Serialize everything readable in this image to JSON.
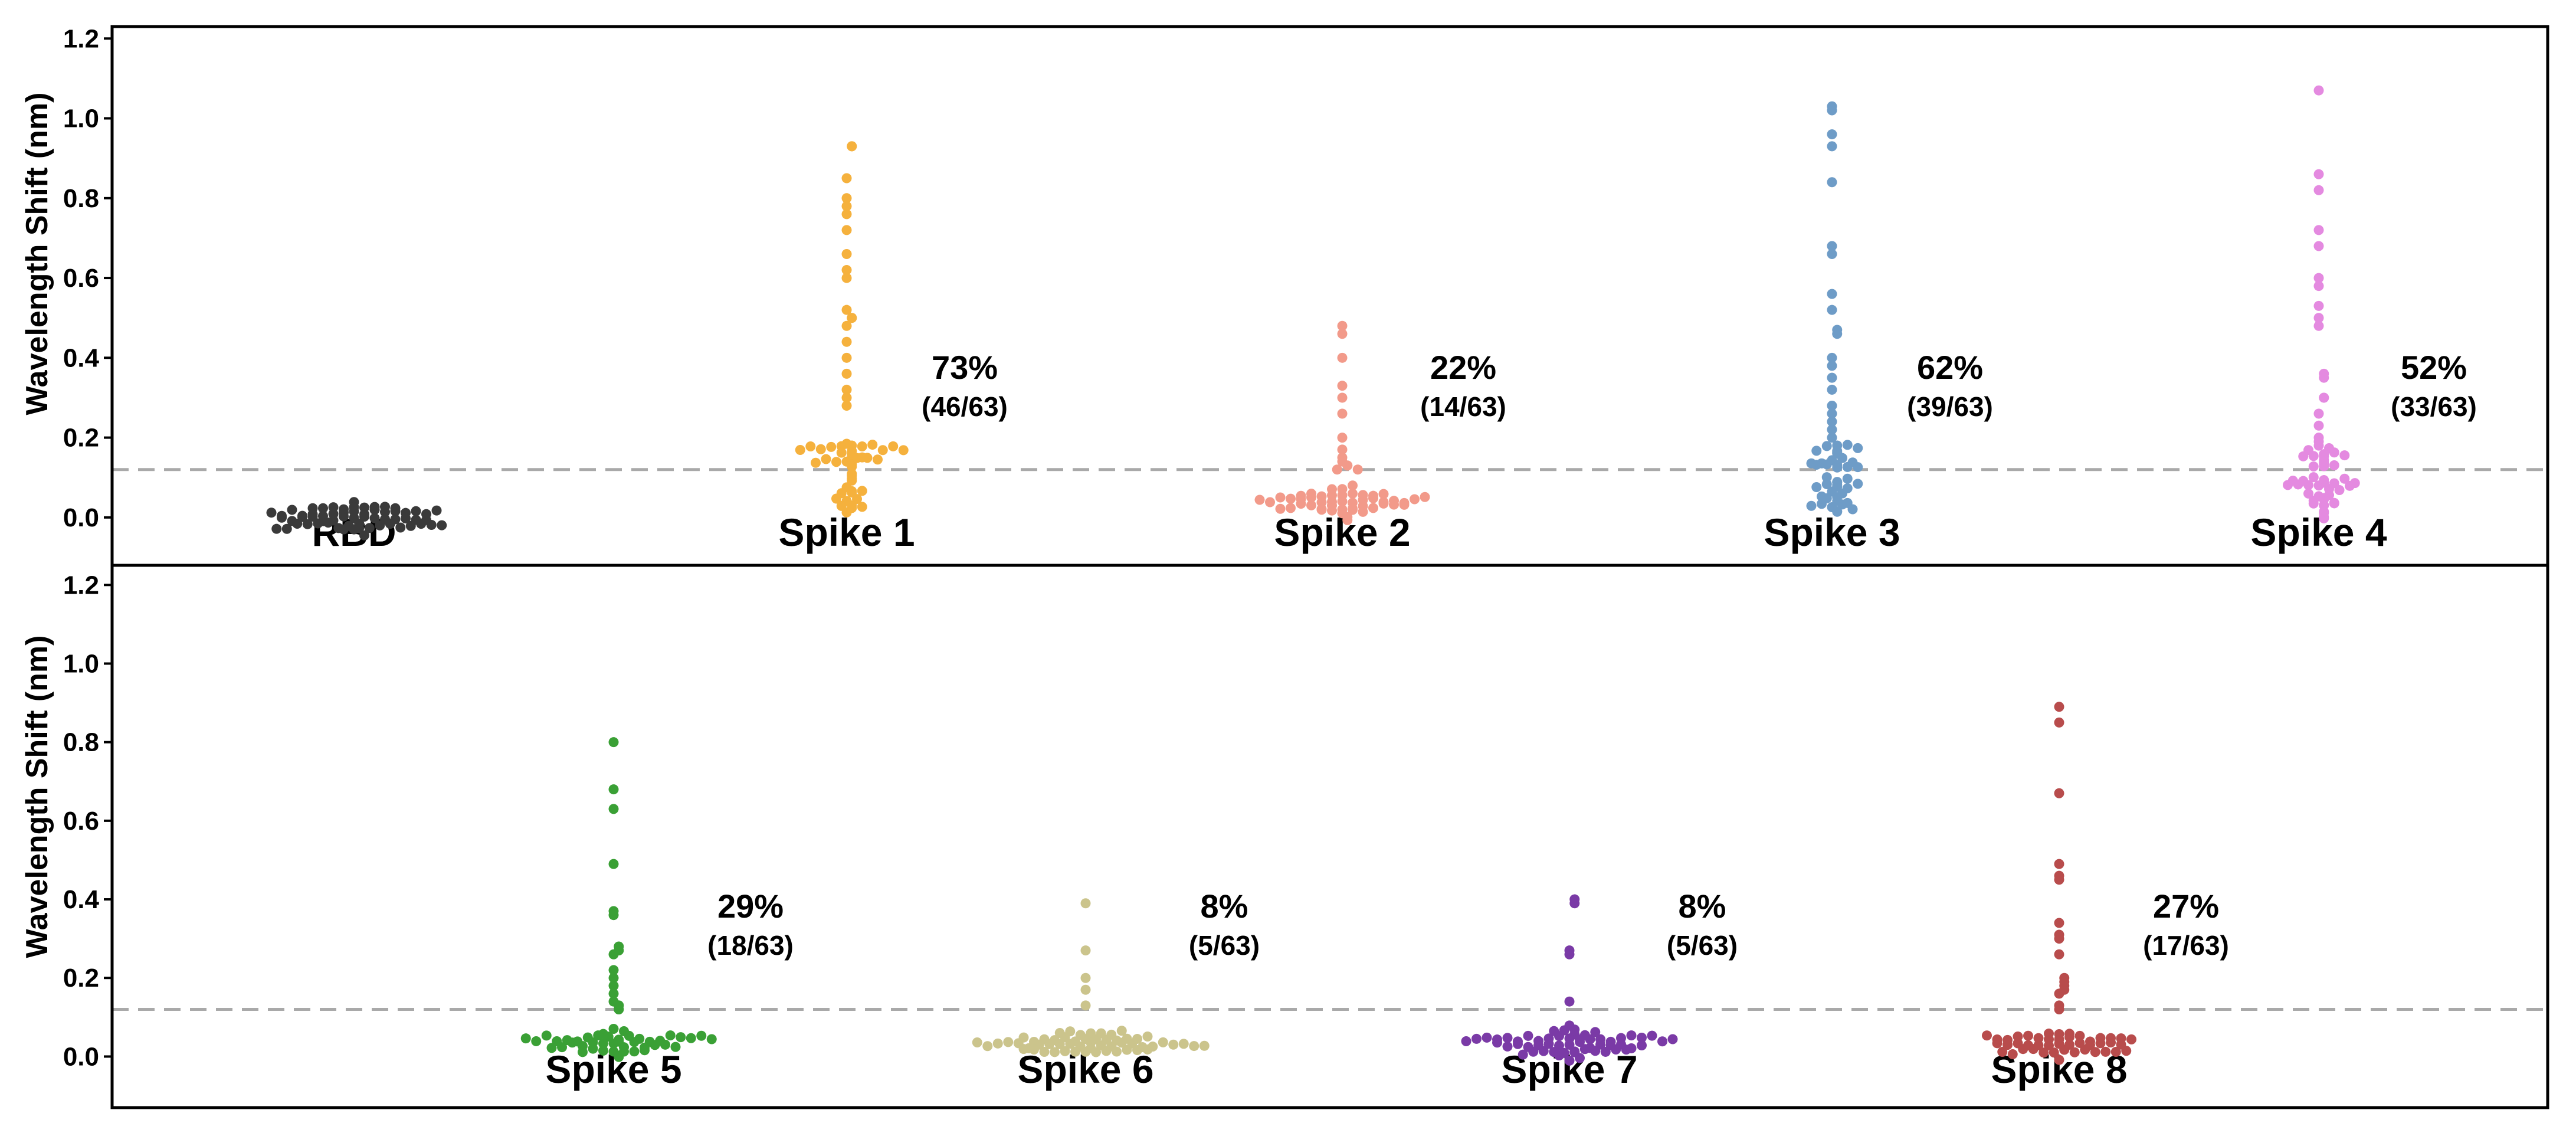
{
  "figure": {
    "threshold": 0.12,
    "threshold_color": "#a9a9a9",
    "seed": 7
  },
  "chart_data": [
    {
      "type": "scatter",
      "subtype": "swarm",
      "ylabel": "Wavelength Shift (nm)",
      "ylim": [
        -0.12,
        1.23
      ],
      "yticks": [
        "0.0",
        "0.2",
        "0.4",
        "0.6",
        "0.8",
        "1.0",
        "1.2"
      ],
      "ytick_values": [
        0,
        0.2,
        0.4,
        0.6,
        0.8,
        1.0,
        1.2
      ],
      "threshold": 0.12,
      "groups": [
        {
          "name": "RBD",
          "color": "#3a3a3a",
          "n": 63,
          "positive": 0,
          "pct": "",
          "frac": "",
          "above": []
        },
        {
          "name": "Spike 1",
          "color": "#f5b13d",
          "n": 63,
          "positive": 46,
          "pct": "73%",
          "frac": "(46/63)",
          "above": [
            0.93,
            0.93,
            0.85,
            0.8,
            0.78,
            0.76,
            0.72,
            0.66,
            0.62,
            0.6,
            0.52,
            0.5,
            0.5,
            0.48,
            0.44,
            0.4,
            0.36,
            0.32,
            0.3,
            0.28
          ]
        },
        {
          "name": "Spike 2",
          "color": "#f29a8a",
          "n": 63,
          "positive": 14,
          "pct": "22%",
          "frac": "(14/63)",
          "above": [
            0.48,
            0.46,
            0.4,
            0.33,
            0.3,
            0.26,
            0.2,
            0.17,
            0.15,
            0.14,
            0.13,
            0.13,
            0.12,
            0.12
          ]
        },
        {
          "name": "Spike 3",
          "color": "#6e9cc7",
          "n": 63,
          "positive": 39,
          "pct": "62%",
          "frac": "(39/63)",
          "above": [
            1.03,
            1.02,
            0.96,
            0.93,
            0.84,
            0.68,
            0.66,
            0.56,
            0.52,
            0.47,
            0.46,
            0.4,
            0.38,
            0.35,
            0.32,
            0.28,
            0.26,
            0.24,
            0.22,
            0.2
          ]
        },
        {
          "name": "Spike 4",
          "color": "#e48ae0",
          "n": 63,
          "positive": 33,
          "pct": "52%",
          "frac": "(33/63)",
          "above": [
            1.07,
            0.86,
            0.82,
            0.72,
            0.68,
            0.6,
            0.58,
            0.53,
            0.5,
            0.48,
            0.36,
            0.35,
            0.3,
            0.3,
            0.26,
            0.23,
            0.2,
            0.19,
            0.18
          ]
        }
      ]
    },
    {
      "type": "scatter",
      "subtype": "swarm",
      "ylabel": "Wavelength Shift (nm)",
      "ylim": [
        -0.13,
        1.25
      ],
      "yticks": [
        "0.0",
        "0.2",
        "0.4",
        "0.6",
        "0.8",
        "1.0",
        "1.2"
      ],
      "ytick_values": [
        0,
        0.2,
        0.4,
        0.6,
        0.8,
        1.0,
        1.2
      ],
      "threshold": 0.12,
      "groups": [
        {
          "name": "Spike 5",
          "color": "#3aa035",
          "n": 63,
          "positive": 18,
          "pct": "29%",
          "frac": "(18/63)",
          "above": [
            0.8,
            0.68,
            0.63,
            0.49,
            0.37,
            0.36,
            0.28,
            0.27,
            0.26,
            0.22,
            0.2,
            0.18,
            0.16,
            0.14,
            0.13,
            0.13,
            0.12,
            0.12
          ]
        },
        {
          "name": "Spike 6",
          "color": "#cbc48c",
          "n": 63,
          "positive": 5,
          "pct": "8%",
          "frac": "(5/63)",
          "above": [
            0.39,
            0.27,
            0.2,
            0.17,
            0.13
          ]
        },
        {
          "name": "Spike 7",
          "color": "#7a3aa6",
          "n": 63,
          "positive": 5,
          "pct": "8%",
          "frac": "(5/63)",
          "above": [
            0.4,
            0.39,
            0.27,
            0.26,
            0.14
          ]
        },
        {
          "name": "Spike 8",
          "color": "#b84c4c",
          "n": 63,
          "positive": 17,
          "pct": "27%",
          "frac": "(17/63)",
          "above": [
            0.89,
            0.85,
            0.67,
            0.49,
            0.46,
            0.45,
            0.34,
            0.31,
            0.3,
            0.26,
            0.2,
            0.19,
            0.18,
            0.17,
            0.16,
            0.13,
            0.12
          ]
        }
      ]
    }
  ]
}
